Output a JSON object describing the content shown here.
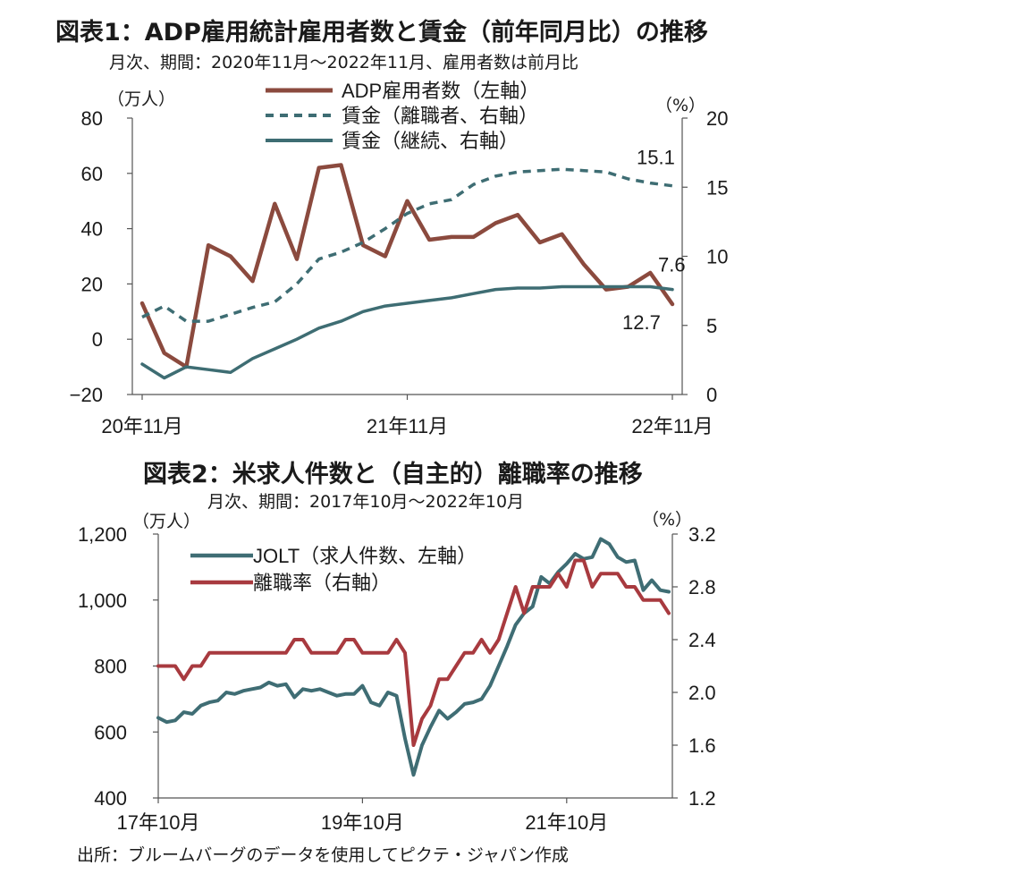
{
  "colors": {
    "adp": "#8b4a3e",
    "wage": "#3e6d73",
    "jolt": "#3f6d74",
    "quits": "#a83a3f",
    "axis": "#555555"
  },
  "chart_data": [
    {
      "type": "line",
      "title": "図表1：ADP雇用統計雇用者数と賃金（前年同月比）の推移",
      "subtitle": "月次、期間：2020年11月～2022年11月、雇用者数は前月比",
      "left_unit": "（万人）",
      "right_unit": "（%）",
      "x_tick_labels": [
        "20年11月",
        "21年11月",
        "22年11月"
      ],
      "x_tick_months": [
        0,
        12,
        24
      ],
      "ylim_left": [
        -20,
        80
      ],
      "yticks_left": [
        "-20",
        "0",
        "20",
        "40",
        "60",
        "80"
      ],
      "yticks_left_values": [
        -20,
        0,
        20,
        40,
        60,
        80
      ],
      "ylim_right": [
        0,
        20
      ],
      "yticks_right": [
        "0",
        "5",
        "10",
        "15",
        "20"
      ],
      "yticks_right_values": [
        0,
        5,
        10,
        15,
        20
      ],
      "series": [
        {
          "name": "ADP雇用者数（左軸）",
          "axis": "left",
          "style": "solid",
          "x": [
            0,
            1,
            2,
            3,
            4,
            5,
            6,
            7,
            8,
            9,
            10,
            11,
            12,
            13,
            14,
            15,
            16,
            17,
            18,
            19,
            20,
            21,
            22,
            23,
            24
          ],
          "values": [
            13,
            -5,
            -10,
            34,
            30,
            21,
            49,
            29,
            62,
            63,
            34,
            30,
            50,
            36,
            37,
            37,
            42,
            45,
            35,
            38,
            27,
            18,
            19,
            24,
            12.7
          ]
        },
        {
          "name": "賃金（離職者、右軸）",
          "axis": "right",
          "style": "dashed",
          "x": [
            0,
            1,
            2,
            3,
            4,
            5,
            6,
            7,
            8,
            9,
            10,
            11,
            12,
            13,
            14,
            15,
            16,
            17,
            18,
            19,
            20,
            21,
            22,
            23,
            24
          ],
          "values": [
            5.6,
            6.4,
            5.3,
            5.3,
            5.8,
            6.3,
            6.7,
            8.0,
            9.8,
            10.3,
            11.0,
            12.0,
            13.1,
            13.8,
            14.1,
            15.2,
            15.8,
            16.1,
            16.2,
            16.3,
            16.2,
            16.1,
            15.6,
            15.3,
            15.1
          ]
        },
        {
          "name": "賃金（継続、右軸）",
          "axis": "right",
          "style": "solid",
          "x": [
            0,
            1,
            2,
            3,
            4,
            5,
            6,
            7,
            8,
            9,
            10,
            11,
            12,
            13,
            14,
            15,
            16,
            17,
            18,
            19,
            20,
            21,
            22,
            23,
            24
          ],
          "values": [
            2.2,
            1.2,
            2.0,
            1.8,
            1.6,
            2.6,
            3.3,
            4.0,
            4.8,
            5.3,
            6.0,
            6.4,
            6.6,
            6.8,
            7.0,
            7.3,
            7.6,
            7.7,
            7.7,
            7.8,
            7.8,
            7.8,
            7.8,
            7.8,
            7.6
          ]
        }
      ],
      "annotations": [
        {
          "text": "15.1",
          "series": 1,
          "index": 24
        },
        {
          "text": "7.6",
          "series": 2,
          "index": 24
        },
        {
          "text": "12.7",
          "series": 0,
          "index": 24
        }
      ],
      "legend": "top-center"
    },
    {
      "type": "line",
      "title": "図表2：米求人件数と（自主的）離職率の推移",
      "subtitle": "月次、期間：2017年10月～2022年10月",
      "left_unit": "（万人）",
      "right_unit": "（%）",
      "x_tick_labels": [
        "17年10月",
        "19年10月",
        "21年10月"
      ],
      "x_tick_months": [
        0,
        24,
        48
      ],
      "ylim_left": [
        400,
        1200
      ],
      "yticks_left": [
        "400",
        "600",
        "800",
        "1,000",
        "1,200"
      ],
      "yticks_left_values": [
        400,
        600,
        800,
        1000,
        1200
      ],
      "ylim_right": [
        1.2,
        3.2
      ],
      "yticks_right": [
        "1.2",
        "1.6",
        "2.0",
        "2.4",
        "2.8",
        "3.2"
      ],
      "yticks_right_values": [
        1.2,
        1.6,
        2.0,
        2.4,
        2.8,
        3.2
      ],
      "series": [
        {
          "name": "JOLT（求人件数、左軸）",
          "axis": "left",
          "style": "solid",
          "x": [
            0,
            1,
            2,
            3,
            4,
            5,
            6,
            7,
            8,
            9,
            10,
            11,
            12,
            13,
            14,
            15,
            16,
            17,
            18,
            19,
            20,
            21,
            22,
            23,
            24,
            25,
            26,
            27,
            28,
            29,
            30,
            31,
            32,
            33,
            34,
            35,
            36,
            37,
            38,
            39,
            40,
            41,
            42,
            43,
            44,
            45,
            46,
            47,
            48,
            49,
            50,
            51,
            52,
            53,
            54,
            55,
            56,
            57,
            58,
            59,
            60
          ],
          "values": [
            643,
            630,
            635,
            660,
            655,
            680,
            690,
            695,
            720,
            715,
            725,
            730,
            735,
            750,
            740,
            745,
            705,
            730,
            725,
            730,
            720,
            710,
            715,
            715,
            740,
            690,
            680,
            720,
            710,
            580,
            470,
            560,
            615,
            665,
            640,
            660,
            685,
            690,
            700,
            740,
            800,
            860,
            925,
            960,
            980,
            1070,
            1050,
            1085,
            1110,
            1140,
            1125,
            1130,
            1185,
            1170,
            1130,
            1115,
            1120,
            1030,
            1060,
            1030,
            1025
          ]
        },
        {
          "name": "離職率（右軸）",
          "axis": "right",
          "style": "solid",
          "x": [
            0,
            1,
            2,
            3,
            4,
            5,
            6,
            7,
            8,
            9,
            10,
            11,
            12,
            13,
            14,
            15,
            16,
            17,
            18,
            19,
            20,
            21,
            22,
            23,
            24,
            25,
            26,
            27,
            28,
            29,
            30,
            31,
            32,
            33,
            34,
            35,
            36,
            37,
            38,
            39,
            40,
            41,
            42,
            43,
            44,
            45,
            46,
            47,
            48,
            49,
            50,
            51,
            52,
            53,
            54,
            55,
            56,
            57,
            58,
            59,
            60
          ],
          "values": [
            2.2,
            2.2,
            2.2,
            2.1,
            2.2,
            2.2,
            2.3,
            2.3,
            2.3,
            2.3,
            2.3,
            2.3,
            2.3,
            2.3,
            2.3,
            2.3,
            2.4,
            2.4,
            2.3,
            2.3,
            2.3,
            2.3,
            2.4,
            2.4,
            2.3,
            2.3,
            2.3,
            2.3,
            2.4,
            2.3,
            1.6,
            1.8,
            1.9,
            2.1,
            2.1,
            2.2,
            2.3,
            2.3,
            2.4,
            2.3,
            2.4,
            2.6,
            2.8,
            2.6,
            2.8,
            2.8,
            2.8,
            2.9,
            2.8,
            3.0,
            3.0,
            2.8,
            2.9,
            2.9,
            2.9,
            2.8,
            2.8,
            2.7,
            2.7,
            2.7,
            2.6
          ]
        }
      ],
      "legend": "top-left"
    }
  ],
  "source_note": "出所：ブルームバーグのデータを使用してピクテ・ジャパン作成"
}
